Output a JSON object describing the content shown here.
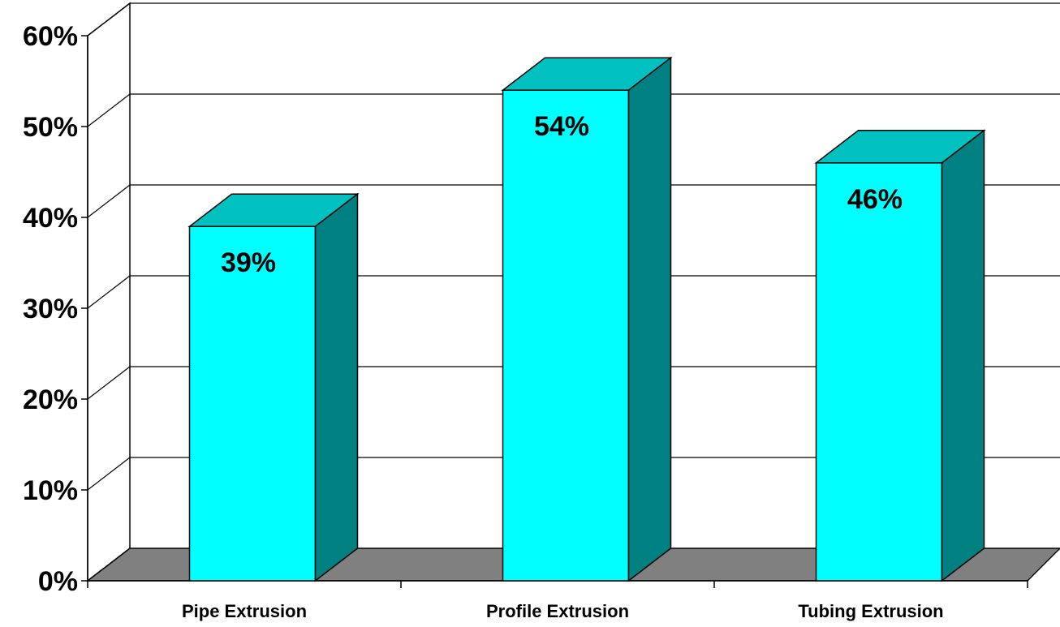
{
  "chart_data": {
    "type": "bar",
    "style": "3d-column",
    "categories": [
      "Pipe Extrusion",
      "Profile Extrusion",
      "Tubing Extrusion"
    ],
    "values": [
      39,
      54,
      46
    ],
    "data_labels": [
      "39%",
      "54%",
      "46%"
    ],
    "y_ticks": [
      0,
      10,
      20,
      30,
      40,
      50,
      60
    ],
    "y_tick_labels": [
      "0%",
      "10%",
      "20%",
      "30%",
      "40%",
      "50%",
      "60%"
    ],
    "ylim": [
      0,
      60
    ],
    "grid": true,
    "legend": "none",
    "colors": {
      "bar_front": "#00FFFF",
      "bar_top": "#00C0C0",
      "bar_side": "#008080",
      "floor": "#808080",
      "wall": "#FFFFFF"
    }
  }
}
